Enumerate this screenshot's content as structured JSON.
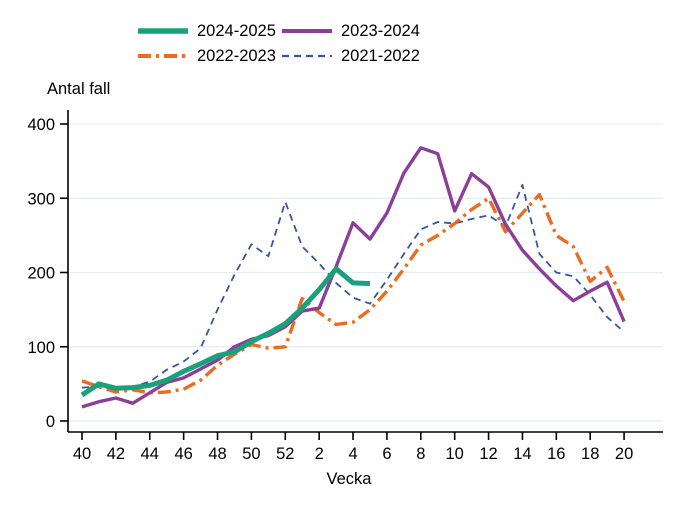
{
  "chart": {
    "y_axis_title": "Antal fall",
    "x_axis_title": "Vecka"
  },
  "chart_data": {
    "type": "line",
    "title": "",
    "ylabel": "Antal fall",
    "xlabel": "Vecka",
    "ylim": [
      0,
      400
    ],
    "yticks": [
      0,
      100,
      200,
      300,
      400
    ],
    "x_tick_step": 2,
    "grid": "horizontal",
    "legend_position": "top",
    "gridline_color": "#e4edf3",
    "axis_color": "#000000",
    "categories": [
      "40",
      "41",
      "42",
      "43",
      "44",
      "45",
      "46",
      "47",
      "48",
      "49",
      "50",
      "51",
      "52",
      "1",
      "2",
      "3",
      "4",
      "5",
      "6",
      "7",
      "8",
      "9",
      "10",
      "11",
      "12",
      "13",
      "14",
      "15",
      "16",
      "17",
      "18",
      "19",
      "20"
    ],
    "series": [
      {
        "name": "2024-2025",
        "color": "#18a17c",
        "line": "solid",
        "weight": "thick",
        "values": [
          35,
          50,
          44,
          45,
          48,
          55,
          67,
          77,
          88,
          93,
          107,
          118,
          131,
          152,
          177,
          205,
          186,
          185,
          null,
          null,
          null,
          null,
          null,
          null,
          null,
          null,
          null,
          null,
          null,
          null,
          null,
          null,
          null
        ]
      },
      {
        "name": "2022-2023",
        "color": "#ed6b1e",
        "line": "dash-dot",
        "weight": "medium",
        "values": [
          54,
          46,
          39,
          42,
          38,
          39,
          43,
          55,
          75,
          90,
          103,
          98,
          100,
          165,
          146,
          130,
          133,
          150,
          175,
          205,
          237,
          250,
          266,
          285,
          300,
          255,
          280,
          305,
          250,
          235,
          188,
          207,
          161
        ]
      },
      {
        "name": "2023-2024",
        "color": "#8c3f98",
        "line": "solid",
        "weight": "medium",
        "values": [
          19,
          26,
          31,
          24,
          38,
          52,
          58,
          70,
          82,
          100,
          110,
          115,
          127,
          148,
          152,
          208,
          267,
          245,
          280,
          334,
          368,
          360,
          283,
          333,
          315,
          265,
          230,
          205,
          182,
          162,
          175,
          187,
          134
        ]
      },
      {
        "name": "2021-2022",
        "color": "#3454a5",
        "line": "dashed",
        "weight": "thin",
        "values": [
          45,
          46,
          43,
          46,
          53,
          69,
          80,
          98,
          150,
          197,
          238,
          222,
          295,
          235,
          212,
          186,
          166,
          158,
          190,
          225,
          258,
          268,
          266,
          272,
          277,
          262,
          318,
          225,
          200,
          195,
          170,
          140,
          120
        ]
      }
    ]
  }
}
